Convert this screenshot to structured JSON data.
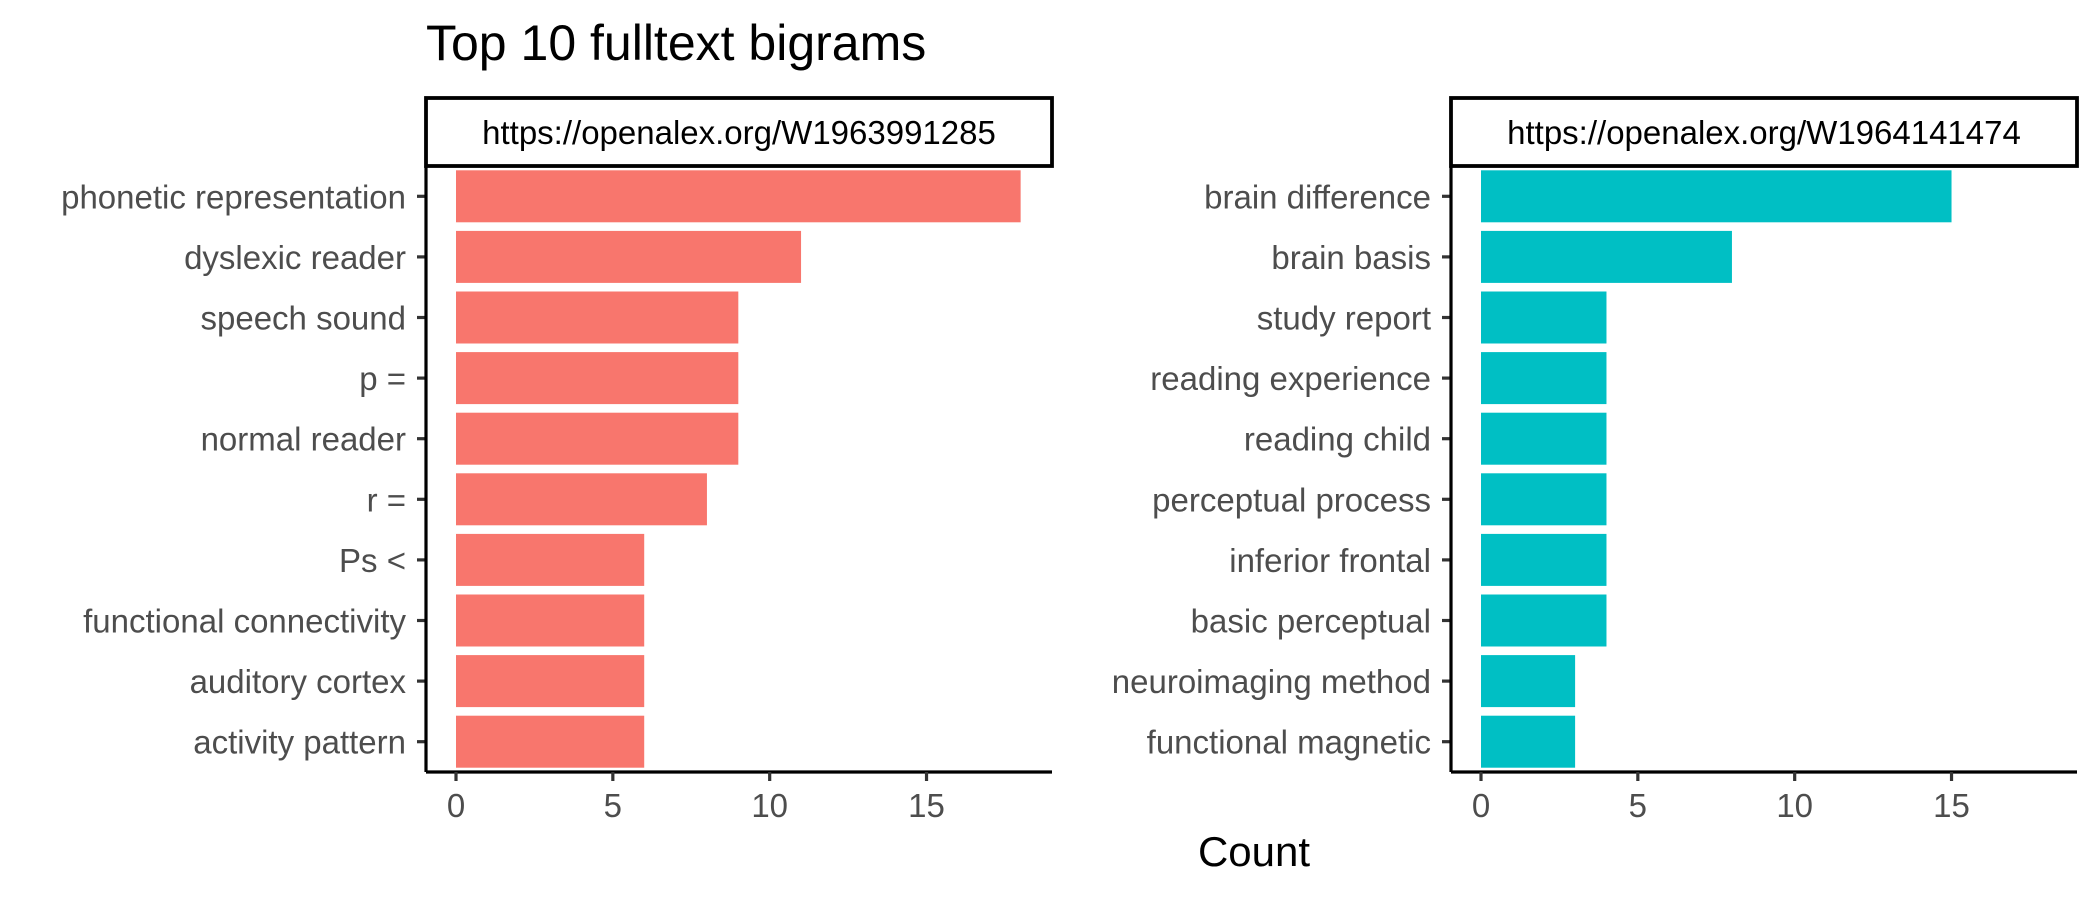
{
  "chart_data": {
    "type": "bar",
    "orientation": "horizontal",
    "title": "Top 10 fulltext bigrams",
    "xlabel": "Count",
    "ylabel": "",
    "xlim": [
      0,
      19
    ],
    "xticks": [
      0,
      5,
      10,
      15
    ],
    "grid": false,
    "legend": "none",
    "panels": [
      {
        "name": "https://openalex.org/W1963991285",
        "color": "#F8766D",
        "categories": [
          "phonetic representation",
          "dyslexic reader",
          "speech sound",
          "p =",
          "normal reader",
          "r =",
          "Ps <",
          "functional connectivity",
          "auditory cortex",
          "activity pattern"
        ],
        "values": [
          18,
          11,
          9,
          9,
          9,
          8,
          6,
          6,
          6,
          6
        ]
      },
      {
        "name": "https://openalex.org/W1964141474",
        "color": "#00BFC4",
        "categories": [
          "brain difference",
          "brain basis",
          "study report",
          "reading experience",
          "reading child",
          "perceptual process",
          "inferior frontal",
          "basic perceptual",
          "neuroimaging method",
          "functional magnetic"
        ],
        "values": [
          15,
          8,
          4,
          4,
          4,
          4,
          4,
          4,
          3,
          3
        ]
      }
    ]
  }
}
